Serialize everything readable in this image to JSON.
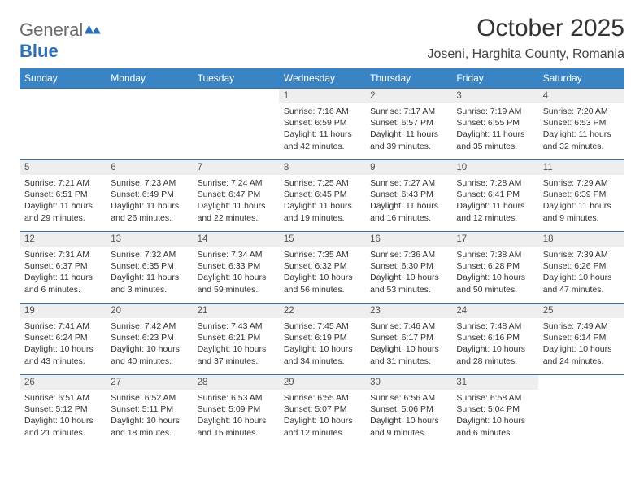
{
  "logo": {
    "part1": "General",
    "part2": "Blue"
  },
  "title": "October 2025",
  "location": "Joseni, Harghita County, Romania",
  "colors": {
    "header_bg": "#3b84c4",
    "header_text": "#ffffff",
    "row_border": "#3b6fa5",
    "daynum_bg": "#eeeeee",
    "logo_blue": "#2c6fb5"
  },
  "day_headers": [
    "Sunday",
    "Monday",
    "Tuesday",
    "Wednesday",
    "Thursday",
    "Friday",
    "Saturday"
  ],
  "weeks": [
    [
      {
        "empty": true
      },
      {
        "empty": true
      },
      {
        "empty": true
      },
      {
        "n": "1",
        "sr": "7:16 AM",
        "ss": "6:59 PM",
        "dl": "11 hours and 42 minutes."
      },
      {
        "n": "2",
        "sr": "7:17 AM",
        "ss": "6:57 PM",
        "dl": "11 hours and 39 minutes."
      },
      {
        "n": "3",
        "sr": "7:19 AM",
        "ss": "6:55 PM",
        "dl": "11 hours and 35 minutes."
      },
      {
        "n": "4",
        "sr": "7:20 AM",
        "ss": "6:53 PM",
        "dl": "11 hours and 32 minutes."
      }
    ],
    [
      {
        "n": "5",
        "sr": "7:21 AM",
        "ss": "6:51 PM",
        "dl": "11 hours and 29 minutes."
      },
      {
        "n": "6",
        "sr": "7:23 AM",
        "ss": "6:49 PM",
        "dl": "11 hours and 26 minutes."
      },
      {
        "n": "7",
        "sr": "7:24 AM",
        "ss": "6:47 PM",
        "dl": "11 hours and 22 minutes."
      },
      {
        "n": "8",
        "sr": "7:25 AM",
        "ss": "6:45 PM",
        "dl": "11 hours and 19 minutes."
      },
      {
        "n": "9",
        "sr": "7:27 AM",
        "ss": "6:43 PM",
        "dl": "11 hours and 16 minutes."
      },
      {
        "n": "10",
        "sr": "7:28 AM",
        "ss": "6:41 PM",
        "dl": "11 hours and 12 minutes."
      },
      {
        "n": "11",
        "sr": "7:29 AM",
        "ss": "6:39 PM",
        "dl": "11 hours and 9 minutes."
      }
    ],
    [
      {
        "n": "12",
        "sr": "7:31 AM",
        "ss": "6:37 PM",
        "dl": "11 hours and 6 minutes."
      },
      {
        "n": "13",
        "sr": "7:32 AM",
        "ss": "6:35 PM",
        "dl": "11 hours and 3 minutes."
      },
      {
        "n": "14",
        "sr": "7:34 AM",
        "ss": "6:33 PM",
        "dl": "10 hours and 59 minutes."
      },
      {
        "n": "15",
        "sr": "7:35 AM",
        "ss": "6:32 PM",
        "dl": "10 hours and 56 minutes."
      },
      {
        "n": "16",
        "sr": "7:36 AM",
        "ss": "6:30 PM",
        "dl": "10 hours and 53 minutes."
      },
      {
        "n": "17",
        "sr": "7:38 AM",
        "ss": "6:28 PM",
        "dl": "10 hours and 50 minutes."
      },
      {
        "n": "18",
        "sr": "7:39 AM",
        "ss": "6:26 PM",
        "dl": "10 hours and 47 minutes."
      }
    ],
    [
      {
        "n": "19",
        "sr": "7:41 AM",
        "ss": "6:24 PM",
        "dl": "10 hours and 43 minutes."
      },
      {
        "n": "20",
        "sr": "7:42 AM",
        "ss": "6:23 PM",
        "dl": "10 hours and 40 minutes."
      },
      {
        "n": "21",
        "sr": "7:43 AM",
        "ss": "6:21 PM",
        "dl": "10 hours and 37 minutes."
      },
      {
        "n": "22",
        "sr": "7:45 AM",
        "ss": "6:19 PM",
        "dl": "10 hours and 34 minutes."
      },
      {
        "n": "23",
        "sr": "7:46 AM",
        "ss": "6:17 PM",
        "dl": "10 hours and 31 minutes."
      },
      {
        "n": "24",
        "sr": "7:48 AM",
        "ss": "6:16 PM",
        "dl": "10 hours and 28 minutes."
      },
      {
        "n": "25",
        "sr": "7:49 AM",
        "ss": "6:14 PM",
        "dl": "10 hours and 24 minutes."
      }
    ],
    [
      {
        "n": "26",
        "sr": "6:51 AM",
        "ss": "5:12 PM",
        "dl": "10 hours and 21 minutes."
      },
      {
        "n": "27",
        "sr": "6:52 AM",
        "ss": "5:11 PM",
        "dl": "10 hours and 18 minutes."
      },
      {
        "n": "28",
        "sr": "6:53 AM",
        "ss": "5:09 PM",
        "dl": "10 hours and 15 minutes."
      },
      {
        "n": "29",
        "sr": "6:55 AM",
        "ss": "5:07 PM",
        "dl": "10 hours and 12 minutes."
      },
      {
        "n": "30",
        "sr": "6:56 AM",
        "ss": "5:06 PM",
        "dl": "10 hours and 9 minutes."
      },
      {
        "n": "31",
        "sr": "6:58 AM",
        "ss": "5:04 PM",
        "dl": "10 hours and 6 minutes."
      },
      {
        "empty": true
      }
    ]
  ],
  "labels": {
    "sunrise": "Sunrise:",
    "sunset": "Sunset:",
    "daylight": "Daylight:"
  }
}
